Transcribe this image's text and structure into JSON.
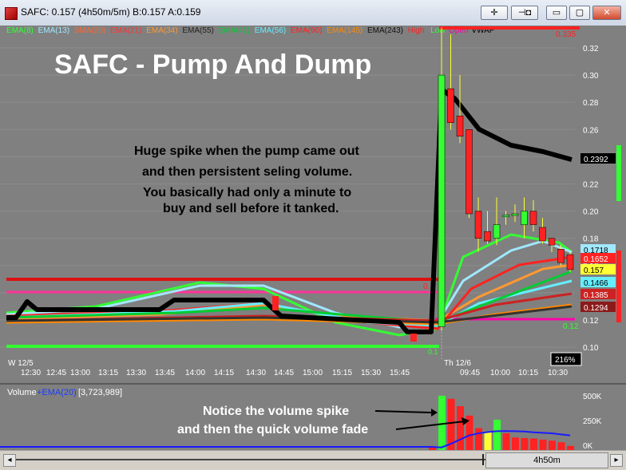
{
  "window": {
    "title": "SAFC: 0.157 (4h50m/5m)  B:0.157 A:0.159",
    "buttons": {
      "crosshair": "✛",
      "pin": "⊣◘",
      "minimize": "▭",
      "maximize": "▢",
      "close": "✕"
    }
  },
  "legend": [
    {
      "label": "EMA(8)",
      "color": "#33ff33"
    },
    {
      "label": "EMA(13)",
      "color": "#a0e8ff"
    },
    {
      "label": "SMA(20)",
      "color": "#ff6633"
    },
    {
      "label": "EMA(21)",
      "color": "#ff3333"
    },
    {
      "label": "EMA(34)",
      "color": "#ff9933"
    },
    {
      "label": "EMA(55)",
      "color": "#222222"
    },
    {
      "label": "EMA(41)",
      "color": "#00cc33"
    },
    {
      "label": "EMA(56)",
      "color": "#66eeff"
    },
    {
      "label": "EMA(90)",
      "color": "#ff2222"
    },
    {
      "label": "EMA(145)",
      "color": "#ff8800"
    },
    {
      "label": "EMA(243)",
      "color": "#111111"
    },
    {
      "label": "High",
      "color": "#ff2222"
    },
    {
      "label": "Low",
      "color": "#33ff33"
    },
    {
      "label": "Open",
      "color": "#ff00aa"
    },
    {
      "label": "VWAP",
      "color": "#000000"
    }
  ],
  "annotations": {
    "headline": "SAFC - Pump And Dump",
    "note_lines": [
      "Huge spike when the pump came out",
      "and then persistent seling volume.",
      "You basically had only a minute to",
      "buy and sell before it tanked."
    ],
    "volume_note_lines": [
      "Notice the volume spike",
      "and then the quick volume fade"
    ]
  },
  "price_axis": {
    "ticks": [
      "0.32",
      "0.30",
      "0.28",
      "0.26",
      "0.24",
      "0.22",
      "0.20",
      "0.18",
      "0.16",
      "0.14",
      "0.12",
      "0.10"
    ],
    "tags": [
      {
        "label": "0.2392",
        "bg": "#000000",
        "fg": "#ffffff"
      },
      {
        "label": "0.1718",
        "bg": "#a0e8ff",
        "fg": "#000000"
      },
      {
        "label": "0.1652",
        "bg": "#ff2222",
        "fg": "#ffffff"
      },
      {
        "label": "0.157",
        "bg": "#ffff33",
        "fg": "#000000"
      },
      {
        "label": "0.1466",
        "bg": "#66eeff",
        "fg": "#000000"
      },
      {
        "label": "0.1385",
        "bg": "#cc2222",
        "fg": "#ffffff"
      },
      {
        "label": "0.1294",
        "bg": "#8b1a1a",
        "fg": "#ffffff"
      }
    ],
    "inline_labels": {
      "high": "0.335",
      "open": "0.12",
      "prior": "0.1",
      "low": "0.1"
    }
  },
  "time_axis": {
    "day1": "W  12/5",
    "day2": "Th 12/6",
    "labels": [
      "12:30",
      "12:45",
      "13:00",
      "13:15",
      "13:30",
      "13:45",
      "14:00",
      "14:15",
      "14:30",
      "14:45",
      "15:00",
      "15:15",
      "15:30",
      "15:45",
      "09:45",
      "10:00",
      "10:15",
      "10:30"
    ],
    "zoom": "216%"
  },
  "volume_panel": {
    "title": "Volume",
    "ema_label": "+EMA(20)",
    "value": "[3,723,989]",
    "ticks": [
      "500K",
      "250K",
      "0K"
    ]
  },
  "scroll": {
    "interval": "4h50m"
  },
  "colors": {
    "background": "#808080",
    "up": "#33ff33",
    "down": "#ff2222",
    "vwap": "#000000"
  },
  "chart_data": {
    "type": "candlestick",
    "xlabel": "",
    "ylabel": "",
    "ylim": [
      0.095,
      0.335
    ],
    "candles_session2": [
      {
        "t": "09:30",
        "o": 0.115,
        "h": 0.335,
        "l": 0.112,
        "c": 0.3
      },
      {
        "t": "09:35",
        "o": 0.29,
        "h": 0.33,
        "l": 0.26,
        "c": 0.265
      },
      {
        "t": "09:40",
        "o": 0.27,
        "h": 0.3,
        "l": 0.25,
        "c": 0.255
      },
      {
        "t": "09:45",
        "o": 0.26,
        "h": 0.26,
        "l": 0.195,
        "c": 0.198
      },
      {
        "t": "09:50",
        "o": 0.2,
        "h": 0.21,
        "l": 0.17,
        "c": 0.18
      },
      {
        "t": "09:55",
        "o": 0.185,
        "h": 0.2,
        "l": 0.176,
        "c": 0.178
      },
      {
        "t": "10:00",
        "o": 0.18,
        "h": 0.21,
        "l": 0.175,
        "c": 0.19
      },
      {
        "t": "10:05",
        "o": 0.196,
        "h": 0.2,
        "l": 0.19,
        "c": 0.197
      },
      {
        "t": "10:10",
        "o": 0.197,
        "h": 0.205,
        "l": 0.192,
        "c": 0.198
      },
      {
        "t": "10:15",
        "o": 0.19,
        "h": 0.21,
        "l": 0.18,
        "c": 0.2
      },
      {
        "t": "10:20",
        "o": 0.2,
        "h": 0.208,
        "l": 0.185,
        "c": 0.19
      },
      {
        "t": "10:25",
        "o": 0.188,
        "h": 0.195,
        "l": 0.176,
        "c": 0.178
      },
      {
        "t": "10:30",
        "o": 0.18,
        "h": 0.18,
        "l": 0.17,
        "c": 0.175
      },
      {
        "t": "10:35",
        "o": 0.172,
        "h": 0.175,
        "l": 0.16,
        "c": 0.162
      },
      {
        "t": "10:40",
        "o": 0.168,
        "h": 0.17,
        "l": 0.155,
        "c": 0.157
      }
    ],
    "volume_session2": [
      520000,
      490000,
      420000,
      330000,
      210000,
      170000,
      290000,
      160000,
      120000,
      115000,
      110000,
      100000,
      90000,
      75000,
      40000
    ],
    "volume_ema20_session2": [
      25000,
      60000,
      100000,
      140000,
      160000,
      172000,
      180000,
      182000,
      180000,
      178000,
      170000,
      165000,
      160000,
      150000,
      140000
    ]
  }
}
